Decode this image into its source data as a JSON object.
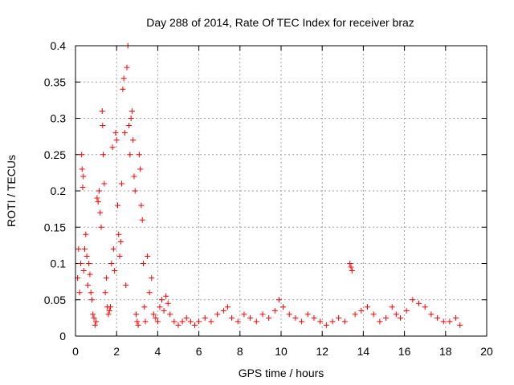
{
  "chart_data": {
    "type": "scatter",
    "title": "Day 288 of 2014, Rate Of TEC Index for receiver braz",
    "xlabel": "GPS time / hours",
    "ylabel": "ROTI / TECUs",
    "xlim": [
      0,
      20
    ],
    "ylim": [
      0,
      0.4
    ],
    "xticks": [
      0,
      2,
      4,
      6,
      8,
      10,
      12,
      14,
      16,
      18,
      20
    ],
    "yticks": [
      0,
      0.05,
      0.1,
      0.15,
      0.2,
      0.25,
      0.3,
      0.35,
      0.4
    ],
    "xtick_labels": [
      "0",
      "2",
      "4",
      "6",
      "8",
      "10",
      "12",
      "14",
      "16",
      "18",
      "20"
    ],
    "ytick_labels": [
      "0",
      "0.05",
      "0.1",
      "0.15",
      "0.2",
      "0.25",
      "0.3",
      "0.35",
      "0.4"
    ],
    "grid": true,
    "marker": "+",
    "marker_color": "#ff0000",
    "series": [
      {
        "name": "ROTI",
        "points": [
          [
            0.1,
            0.08
          ],
          [
            0.15,
            0.12
          ],
          [
            0.2,
            0.06
          ],
          [
            0.25,
            0.1
          ],
          [
            0.3,
            0.25
          ],
          [
            0.32,
            0.23
          ],
          [
            0.35,
            0.205
          ],
          [
            0.38,
            0.22
          ],
          [
            0.4,
            0.09
          ],
          [
            0.45,
            0.12
          ],
          [
            0.5,
            0.14
          ],
          [
            0.55,
            0.11
          ],
          [
            0.6,
            0.07
          ],
          [
            0.65,
            0.1
          ],
          [
            0.7,
            0.085
          ],
          [
            0.75,
            0.06
          ],
          [
            0.8,
            0.05
          ],
          [
            0.85,
            0.03
          ],
          [
            0.9,
            0.025
          ],
          [
            0.95,
            0.015
          ],
          [
            1.0,
            0.02
          ],
          [
            1.05,
            0.19
          ],
          [
            1.1,
            0.185
          ],
          [
            1.15,
            0.2
          ],
          [
            1.2,
            0.17
          ],
          [
            1.25,
            0.15
          ],
          [
            1.3,
            0.31
          ],
          [
            1.32,
            0.29
          ],
          [
            1.35,
            0.25
          ],
          [
            1.4,
            0.21
          ],
          [
            1.45,
            0.06
          ],
          [
            1.5,
            0.08
          ],
          [
            1.55,
            0.04
          ],
          [
            1.6,
            0.03
          ],
          [
            1.65,
            0.035
          ],
          [
            1.7,
            0.04
          ],
          [
            1.75,
            0.1
          ],
          [
            1.8,
            0.26
          ],
          [
            1.85,
            0.12
          ],
          [
            1.9,
            0.09
          ],
          [
            1.95,
            0.28
          ],
          [
            2.0,
            0.27
          ],
          [
            2.05,
            0.18
          ],
          [
            2.1,
            0.14
          ],
          [
            2.15,
            0.11
          ],
          [
            2.2,
            0.13
          ],
          [
            2.25,
            0.21
          ],
          [
            2.3,
            0.34
          ],
          [
            2.35,
            0.355
          ],
          [
            2.4,
            0.28
          ],
          [
            2.45,
            0.07
          ],
          [
            2.5,
            0.37
          ],
          [
            2.55,
            0.4
          ],
          [
            2.6,
            0.29
          ],
          [
            2.65,
            0.25
          ],
          [
            2.7,
            0.3
          ],
          [
            2.75,
            0.31
          ],
          [
            2.8,
            0.27
          ],
          [
            2.85,
            0.22
          ],
          [
            2.9,
            0.2
          ],
          [
            2.95,
            0.03
          ],
          [
            3.0,
            0.02
          ],
          [
            3.05,
            0.015
          ],
          [
            3.1,
            0.25
          ],
          [
            3.15,
            0.23
          ],
          [
            3.2,
            0.18
          ],
          [
            3.25,
            0.16
          ],
          [
            3.3,
            0.1
          ],
          [
            3.35,
            0.04
          ],
          [
            3.4,
            0.02
          ],
          [
            3.5,
            0.11
          ],
          [
            3.6,
            0.06
          ],
          [
            3.7,
            0.08
          ],
          [
            3.8,
            0.03
          ],
          [
            3.9,
            0.025
          ],
          [
            4.0,
            0.02
          ],
          [
            4.1,
            0.04
          ],
          [
            4.2,
            0.05
          ],
          [
            4.3,
            0.035
          ],
          [
            4.4,
            0.055
          ],
          [
            4.5,
            0.045
          ],
          [
            4.6,
            0.03
          ],
          [
            4.8,
            0.02
          ],
          [
            5.0,
            0.015
          ],
          [
            5.2,
            0.02
          ],
          [
            5.4,
            0.025
          ],
          [
            5.6,
            0.02
          ],
          [
            5.8,
            0.015
          ],
          [
            6.0,
            0.02
          ],
          [
            6.3,
            0.025
          ],
          [
            6.6,
            0.02
          ],
          [
            6.9,
            0.03
          ],
          [
            7.2,
            0.035
          ],
          [
            7.4,
            0.04
          ],
          [
            7.6,
            0.025
          ],
          [
            7.9,
            0.02
          ],
          [
            8.2,
            0.03
          ],
          [
            8.5,
            0.025
          ],
          [
            8.8,
            0.02
          ],
          [
            9.1,
            0.03
          ],
          [
            9.4,
            0.025
          ],
          [
            9.7,
            0.035
          ],
          [
            9.9,
            0.05
          ],
          [
            10.1,
            0.04
          ],
          [
            10.4,
            0.03
          ],
          [
            10.7,
            0.025
          ],
          [
            11.0,
            0.02
          ],
          [
            11.3,
            0.03
          ],
          [
            11.6,
            0.025
          ],
          [
            11.9,
            0.02
          ],
          [
            12.2,
            0.015
          ],
          [
            12.5,
            0.02
          ],
          [
            12.8,
            0.025
          ],
          [
            13.1,
            0.02
          ],
          [
            13.35,
            0.1
          ],
          [
            13.4,
            0.095
          ],
          [
            13.45,
            0.09
          ],
          [
            13.6,
            0.03
          ],
          [
            13.9,
            0.035
          ],
          [
            14.2,
            0.04
          ],
          [
            14.5,
            0.03
          ],
          [
            14.8,
            0.02
          ],
          [
            15.1,
            0.025
          ],
          [
            15.4,
            0.04
          ],
          [
            15.6,
            0.03
          ],
          [
            15.8,
            0.025
          ],
          [
            16.1,
            0.035
          ],
          [
            16.4,
            0.05
          ],
          [
            16.7,
            0.045
          ],
          [
            17.0,
            0.04
          ],
          [
            17.3,
            0.03
          ],
          [
            17.6,
            0.025
          ],
          [
            17.9,
            0.02
          ],
          [
            18.2,
            0.02
          ],
          [
            18.5,
            0.025
          ],
          [
            18.7,
            0.015
          ]
        ]
      }
    ]
  }
}
